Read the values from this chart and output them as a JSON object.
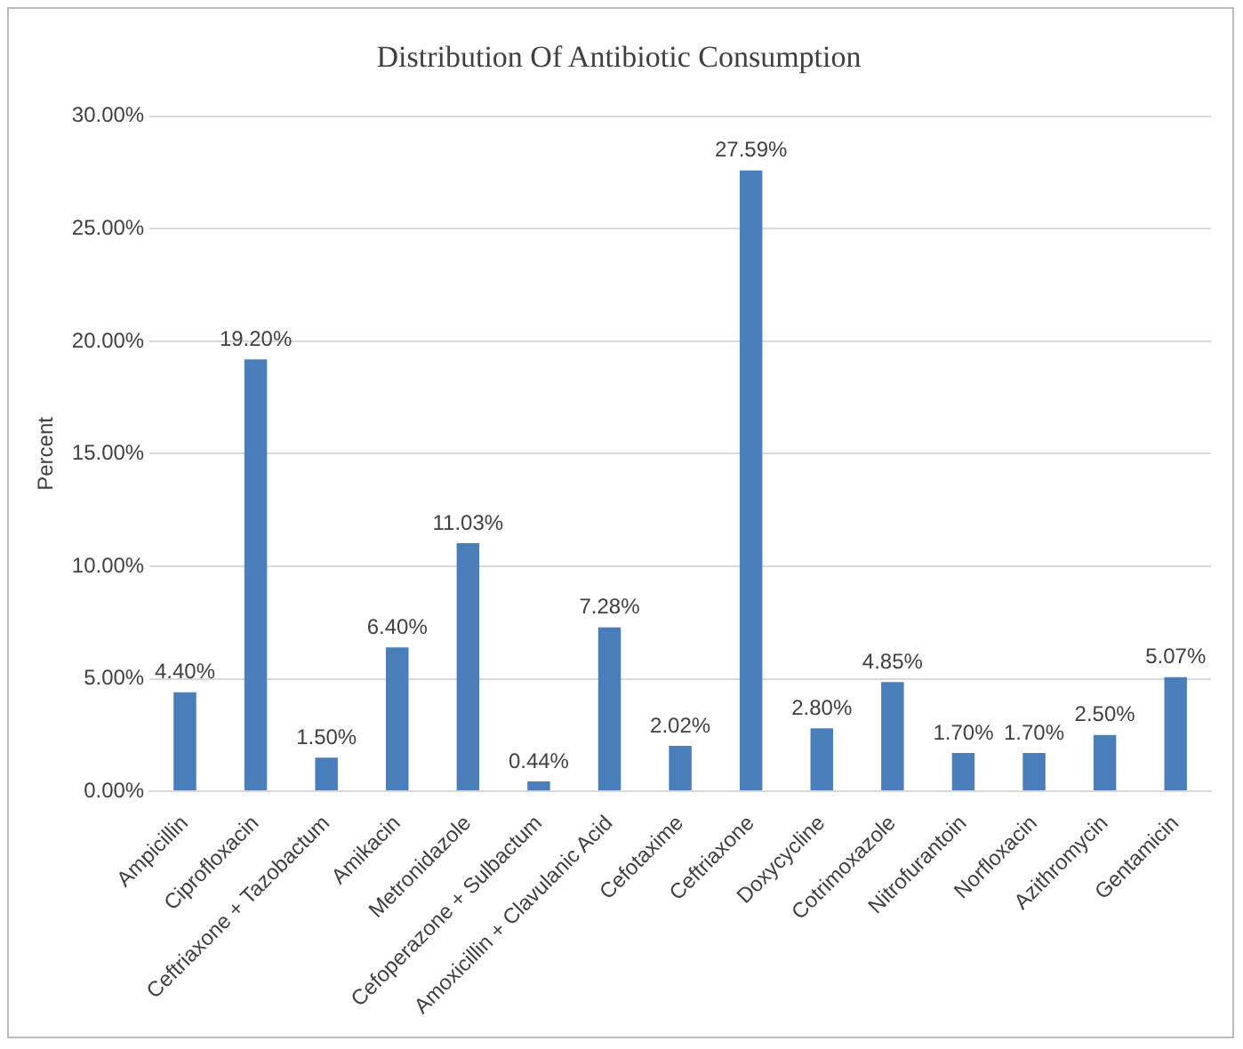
{
  "chart_data": {
    "type": "bar",
    "title": "Distribution Of Antibiotic Consumption",
    "ylabel": "Percent",
    "categories": [
      "Ampicillin",
      "Ciprofloxacin",
      "Ceftriaxone + Tazobactum",
      "Amikacin",
      "Metronidazole",
      "Cefoperazone + Sulbactum",
      "Amoxicillin + Clavulanic Acid",
      "Cefotaxime",
      "Ceftriaxone",
      "Doxycycline",
      "Cotrimoxazole",
      "Nitrofurantoin",
      "Norfloxacin",
      "Azithromycin",
      "Gentamicin"
    ],
    "values": [
      4.4,
      19.2,
      1.5,
      6.4,
      11.03,
      0.44,
      7.28,
      2.02,
      27.59,
      2.8,
      4.85,
      1.7,
      1.7,
      2.5,
      5.07
    ],
    "value_labels": [
      "4.40%",
      "19.20%",
      "1.50%",
      "6.40%",
      "11.03%",
      "0.44%",
      "7.28%",
      "2.02%",
      "27.59%",
      "2.80%",
      "4.85%",
      "1.70%",
      "1.70%",
      "2.50%",
      "5.07%"
    ],
    "color": "#4a7ebb",
    "ylim": [
      0,
      30
    ],
    "yticks": [
      {
        "value": 0,
        "label": "0.00%"
      },
      {
        "value": 5,
        "label": "5.00%"
      },
      {
        "value": 10,
        "label": "10.00%"
      },
      {
        "value": 15,
        "label": "15.00%"
      },
      {
        "value": 20,
        "label": "20.00%"
      },
      {
        "value": 25,
        "label": "25.00%"
      },
      {
        "value": 30,
        "label": "30.00%"
      }
    ],
    "grid": "y",
    "legend": false
  }
}
